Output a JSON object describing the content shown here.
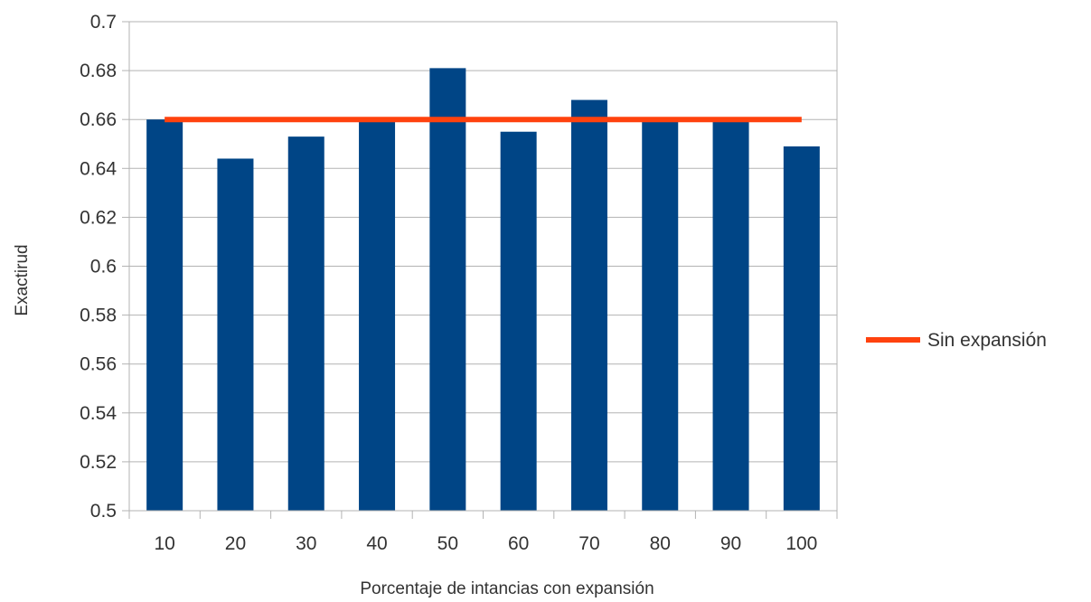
{
  "chart_data": {
    "type": "bar",
    "title": "",
    "xlabel": "Porcentaje de intancias con expansión",
    "ylabel": "Exactirud",
    "categories": [
      "10",
      "20",
      "30",
      "40",
      "50",
      "60",
      "70",
      "80",
      "90",
      "100"
    ],
    "series": [
      {
        "type": "bar",
        "values": [
          0.66,
          0.644,
          0.653,
          0.66,
          0.681,
          0.655,
          0.668,
          0.66,
          0.66,
          0.649
        ],
        "color": "#004586"
      },
      {
        "type": "line",
        "name": "Sin expansión",
        "values": [
          0.66,
          0.66,
          0.66,
          0.66,
          0.66,
          0.66,
          0.66,
          0.66,
          0.66,
          0.66
        ],
        "color": "#ff420e"
      }
    ],
    "ylim": [
      0.5,
      0.7
    ],
    "yticks": [
      "0.5",
      "0.52",
      "0.54",
      "0.56",
      "0.58",
      "0.6",
      "0.62",
      "0.64",
      "0.66",
      "0.68",
      "0.7"
    ],
    "grid": true,
    "legend": "right"
  }
}
